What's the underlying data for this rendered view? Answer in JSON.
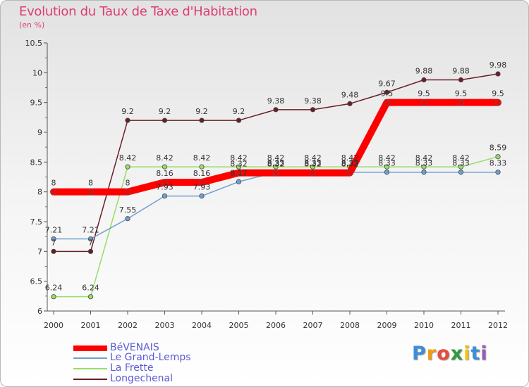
{
  "chart_data": {
    "type": "line",
    "title": "Evolution du Taux de Taxe d'Habitation",
    "subtitle": "(en %)",
    "x": [
      "2000",
      "2001",
      "2002",
      "2003",
      "2004",
      "2005",
      "2006",
      "2007",
      "2008",
      "2009",
      "2010",
      "2011",
      "2012"
    ],
    "ylim": [
      6,
      10.5
    ],
    "yticks": [
      "6",
      "6.5",
      "7",
      "7.5",
      "8",
      "8.5",
      "9",
      "9.5",
      "10",
      "10.5"
    ],
    "grid": false,
    "legend_position": "bottom-left",
    "series": [
      {
        "name": "BéVENAIS",
        "color": "#ff0000",
        "values": [
          8,
          8,
          8,
          8.16,
          8.16,
          8.32,
          8.32,
          8.32,
          8.32,
          9.5,
          9.5,
          9.5,
          9.5
        ],
        "labels": [
          "8",
          "8",
          "8",
          "8.16",
          "8.16",
          "8.32",
          "8.32",
          "8.32",
          "8.32",
          "9.5",
          "9.5",
          "9.5",
          "9.5"
        ]
      },
      {
        "name": "Le Grand-Lemps",
        "color": "#6f9fd0",
        "values": [
          7.21,
          7.21,
          7.55,
          7.93,
          7.93,
          8.17,
          8.33,
          8.33,
          8.33,
          8.33,
          8.33,
          8.33,
          8.33
        ],
        "labels": [
          "7.21",
          "7.21",
          "7.55",
          "7.93",
          "7.93",
          "8.17",
          "8.33",
          "8.33",
          "8.33",
          "8.33",
          "8.33",
          "8.33",
          "8.33"
        ]
      },
      {
        "name": "La Frette",
        "color": "#99dd66",
        "values": [
          6.24,
          6.24,
          8.42,
          8.42,
          8.42,
          8.42,
          8.42,
          8.42,
          8.42,
          8.42,
          8.42,
          8.42,
          8.59
        ],
        "labels": [
          "6.24",
          "6.24",
          "8.42",
          "8.42",
          "8.42",
          "8.42",
          "8.42",
          "8.42",
          "8.42",
          "8.42",
          "8.42",
          "8.42",
          "8.59"
        ]
      },
      {
        "name": "Longechenal",
        "color": "#6b1e26",
        "values": [
          7,
          7,
          9.2,
          9.2,
          9.2,
          9.2,
          9.38,
          9.38,
          9.48,
          9.67,
          9.88,
          9.88,
          9.98
        ],
        "labels": [
          "7",
          "7",
          "9.2",
          "9.2",
          "9.2",
          "9.2",
          "9.38",
          "9.38",
          "9.48",
          "9.67",
          "9.88",
          "9.88",
          "9.98"
        ]
      }
    ]
  },
  "logo": {
    "letters": [
      "P",
      "r",
      "o",
      "x",
      "i",
      "t",
      "i"
    ],
    "colors": [
      "#3b8fd9",
      "#f39c12",
      "#e84c3d",
      "#2e9b3e",
      "#f1c40f",
      "#3b8fd9",
      "#9b59b6"
    ]
  }
}
